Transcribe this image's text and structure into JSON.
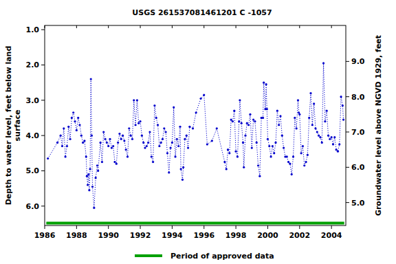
{
  "chart_data": {
    "type": "line",
    "title": "USGS 261537081461201 C  -1057",
    "ylabel": [
      "Depth to water level, feet below land",
      "surface"
    ],
    "y2label": "Groundwater level above NGVD 1929, feet",
    "xlim": [
      1986,
      2004.9
    ],
    "xticks": [
      1986,
      1988,
      1990,
      1992,
      1994,
      1996,
      1998,
      2000,
      2002,
      2004
    ],
    "ylim": [
      6.55,
      0.88
    ],
    "yticks": [
      {
        "value": 1,
        "label": "1.0"
      },
      {
        "value": 2,
        "label": "2.0"
      },
      {
        "value": 3,
        "label": "3.0"
      },
      {
        "value": 4,
        "label": "4.0"
      },
      {
        "value": 5,
        "label": "5.0"
      },
      {
        "value": 6,
        "label": "6.0"
      }
    ],
    "y2lim": [
      4.35,
      10.02
    ],
    "y2ticks": [
      {
        "value": 5,
        "label": "5.0"
      },
      {
        "value": 6,
        "label": "6.0"
      },
      {
        "value": 7,
        "label": "7.0"
      },
      {
        "value": 8,
        "label": "8.0"
      },
      {
        "value": 9,
        "label": "9.0"
      }
    ],
    "grid": false,
    "legend": "bottom",
    "series": [
      {
        "color": "#0000cc",
        "marker": "circle",
        "line_style": "dotted",
        "x": [
          1986.2,
          1986.8,
          1987.0,
          1987.1,
          1987.2,
          1987.3,
          1987.4,
          1987.5,
          1987.6,
          1987.7,
          1987.8,
          1987.9,
          1988.0,
          1988.1,
          1988.2,
          1988.3,
          1988.4,
          1988.5,
          1988.6,
          1988.65,
          1988.7,
          1988.75,
          1988.8,
          1988.85,
          1988.9,
          1988.95,
          1989.0,
          1989.1,
          1989.2,
          1989.3,
          1989.35,
          1989.5,
          1989.6,
          1989.7,
          1989.8,
          1989.9,
          1990.0,
          1990.1,
          1990.2,
          1990.3,
          1990.4,
          1990.5,
          1990.6,
          1990.7,
          1990.8,
          1990.9,
          1991.0,
          1991.1,
          1991.2,
          1991.3,
          1991.4,
          1991.5,
          1991.6,
          1991.7,
          1991.8,
          1991.9,
          1992.0,
          1992.1,
          1992.2,
          1992.3,
          1992.4,
          1992.5,
          1992.6,
          1992.7,
          1992.8,
          1992.9,
          1993.0,
          1993.1,
          1993.2,
          1993.3,
          1993.4,
          1993.5,
          1993.6,
          1993.7,
          1993.8,
          1993.9,
          1994.0,
          1994.1,
          1994.2,
          1994.3,
          1994.4,
          1994.5,
          1994.55,
          1994.65,
          1994.7,
          1994.8,
          1994.9,
          1995.0,
          1995.1,
          1995.3,
          1995.5,
          1995.8,
          1996.0,
          1996.2,
          1996.5,
          1996.8,
          1997.3,
          1997.4,
          1997.5,
          1997.6,
          1997.7,
          1997.8,
          1997.9,
          1998.0,
          1998.1,
          1998.2,
          1998.25,
          1998.35,
          1998.45,
          1998.5,
          1998.6,
          1998.7,
          1998.8,
          1998.9,
          1999.0,
          1999.1,
          1999.2,
          1999.3,
          1999.4,
          1999.5,
          1999.6,
          1999.7,
          1999.75,
          1999.85,
          1999.9,
          1999.95,
          2000.0,
          2000.1,
          2000.2,
          2000.3,
          2000.4,
          2000.5,
          2000.6,
          2000.7,
          2000.8,
          2000.9,
          2001.0,
          2001.1,
          2001.2,
          2001.3,
          2001.4,
          2001.5,
          2001.6,
          2001.7,
          2001.8,
          2001.9,
          2001.95,
          2002.0,
          2002.1,
          2002.2,
          2002.3,
          2002.4,
          2002.5,
          2002.6,
          2002.7,
          2002.8,
          2002.9,
          2003.0,
          2003.1,
          2003.2,
          2003.3,
          2003.4,
          2003.5,
          2003.6,
          2003.7,
          2003.8,
          2003.9,
          2004.0,
          2004.1,
          2004.2,
          2004.3,
          2004.4,
          2004.5,
          2004.6,
          2004.7,
          2004.75
        ],
        "values": [
          4.65,
          4.2,
          4.0,
          4.3,
          3.8,
          4.6,
          4.3,
          3.75,
          4.1,
          3.5,
          3.35,
          3.6,
          3.85,
          3.5,
          3.7,
          4.0,
          4.2,
          4.15,
          4.6,
          5.15,
          5.4,
          5.1,
          5.55,
          4.95,
          2.4,
          4.0,
          5.45,
          6.05,
          5.2,
          4.85,
          5.0,
          4.2,
          4.75,
          3.9,
          4.1,
          4.2,
          4.3,
          4.1,
          4.35,
          4.3,
          4.75,
          4.8,
          4.2,
          3.95,
          4.1,
          4.0,
          4.15,
          4.4,
          4.6,
          3.8,
          4.0,
          4.1,
          3.0,
          3.7,
          3.0,
          3.65,
          3.6,
          4.0,
          4.2,
          4.35,
          4.3,
          4.2,
          3.9,
          4.6,
          4.75,
          3.15,
          3.5,
          3.7,
          4.3,
          4.2,
          4.1,
          3.8,
          3.9,
          4.5,
          5.05,
          4.35,
          4.2,
          3.2,
          4.6,
          4.1,
          4.3,
          3.75,
          4.95,
          5.25,
          4.9,
          4.1,
          4.0,
          4.35,
          3.75,
          3.8,
          3.35,
          2.95,
          2.85,
          4.25,
          4.15,
          3.8,
          4.75,
          4.95,
          4.4,
          4.5,
          3.55,
          3.6,
          3.3,
          4.45,
          4.6,
          3.6,
          3.0,
          3.65,
          4.2,
          4.9,
          4.0,
          3.65,
          3.7,
          3.4,
          4.35,
          3.55,
          3.6,
          4.2,
          4.85,
          5.15,
          3.5,
          3.5,
          2.5,
          3.25,
          2.55,
          3.25,
          4.1,
          4.3,
          4.6,
          4.3,
          4.5,
          4.2,
          3.3,
          3.7,
          3.45,
          4.0,
          4.35,
          4.6,
          4.6,
          4.75,
          4.8,
          5.1,
          4.6,
          3.5,
          3.8,
          3.0,
          3.35,
          3.4,
          4.5,
          4.3,
          4.85,
          4.75,
          4.55,
          3.5,
          2.8,
          3.7,
          3.1,
          3.8,
          3.9,
          4.0,
          4.05,
          4.2,
          1.95,
          3.6,
          3.3,
          4.0,
          4.1,
          4.05,
          4.25,
          4.05,
          4.4,
          4.45,
          4.25,
          2.9,
          3.15,
          3.55
        ]
      },
      {
        "name": "Period of approved data",
        "color": "#00a000",
        "marker": "none",
        "line_style": "solid",
        "x": [
          1986.1,
          2004.8
        ],
        "values": [
          6.48,
          6.48
        ]
      }
    ]
  }
}
